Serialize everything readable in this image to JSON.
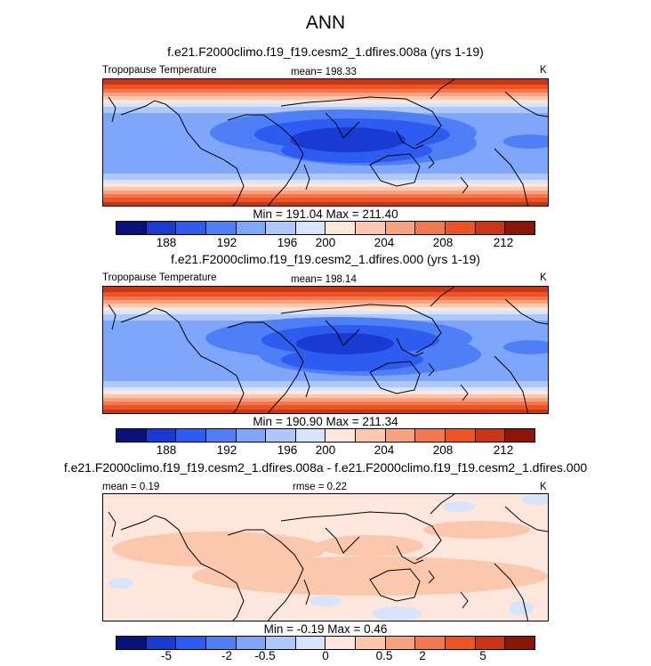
{
  "main_title": "ANN",
  "colors": {
    "main_scale": [
      "#08127a",
      "#1a3bd1",
      "#2d5cf0",
      "#4f7ff7",
      "#7ea6fa",
      "#aec8fb",
      "#d6e5fd",
      "#fde6dc",
      "#fbc7ad",
      "#f8a27f",
      "#f4784f",
      "#ec5424",
      "#c93515",
      "#8b1506"
    ],
    "diff_scale": [
      "#08127a",
      "#1a3bd1",
      "#2d5cf0",
      "#4f7ff7",
      "#7ea6fa",
      "#aec8fb",
      "#d6e5fd",
      "#fde6dc",
      "#fbc7ad",
      "#f8a27f",
      "#f4784f",
      "#ec5424",
      "#c93515",
      "#8b1506"
    ],
    "land_outline": "#000000"
  },
  "panels": [
    {
      "title": "f.e21.F2000climo.f19_f19.cesm2_1.dfires.008a (yrs 1-19)",
      "left_label": "Tropopause Temperature",
      "center_label": "mean= 198.33",
      "right_label": "K",
      "minmax": "Min = 191.04 Max = 211.40",
      "ticks": [
        "188",
        "192",
        "196",
        "200",
        "204",
        "208",
        "212"
      ]
    },
    {
      "title": "f.e21.F2000climo.f19_f19.cesm2_1.dfires.000 (yrs 1-19)",
      "left_label": "Tropopause Temperature",
      "center_label": "mean= 198.14",
      "right_label": "K",
      "minmax": "Min = 190.90 Max = 211.34",
      "ticks": [
        "188",
        "192",
        "196",
        "200",
        "204",
        "208",
        "212"
      ]
    },
    {
      "title": "f.e21.F2000climo.f19_f19.cesm2_1.dfires.008a - f.e21.F2000climo.f19_f19.cesm2_1.dfires.000",
      "left_label": "mean =   0.19",
      "center_label": "rmse =   0.22",
      "right_label": "K",
      "minmax": "Min =  -0.19 Max =   0.46",
      "ticks": [
        "-5",
        "-2",
        "-0.5",
        "0",
        "0.5",
        "2",
        "5"
      ]
    }
  ]
}
